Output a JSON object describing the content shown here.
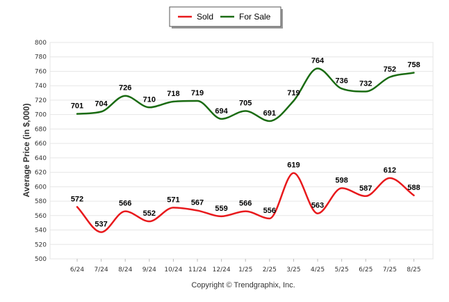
{
  "chart_data": {
    "type": "line",
    "categories": [
      "6/24",
      "7/24",
      "8/24",
      "9/24",
      "10/24",
      "11/24",
      "12/24",
      "1/25",
      "2/25",
      "3/25",
      "4/25",
      "5/25",
      "6/25",
      "7/25",
      "8/25"
    ],
    "series": [
      {
        "name": "Sold",
        "color": "#e8191c",
        "values": [
          572,
          537,
          566,
          552,
          571,
          567,
          559,
          566,
          556,
          619,
          563,
          598,
          587,
          612,
          588
        ]
      },
      {
        "name": "For Sale",
        "color": "#1a6b12",
        "values": [
          701,
          704,
          726,
          710,
          718,
          719,
          694,
          705,
          691,
          719,
          764,
          736,
          732,
          752,
          758
        ]
      }
    ],
    "ylabel": "Average Price (in $,000)",
    "ylim": [
      500,
      800
    ],
    "yticks": [
      500,
      520,
      540,
      560,
      580,
      600,
      620,
      640,
      660,
      680,
      700,
      720,
      740,
      760,
      780,
      800
    ],
    "grid": true,
    "legend_position": "top-center"
  },
  "footer": "Copyright © Trendgraphix, Inc."
}
